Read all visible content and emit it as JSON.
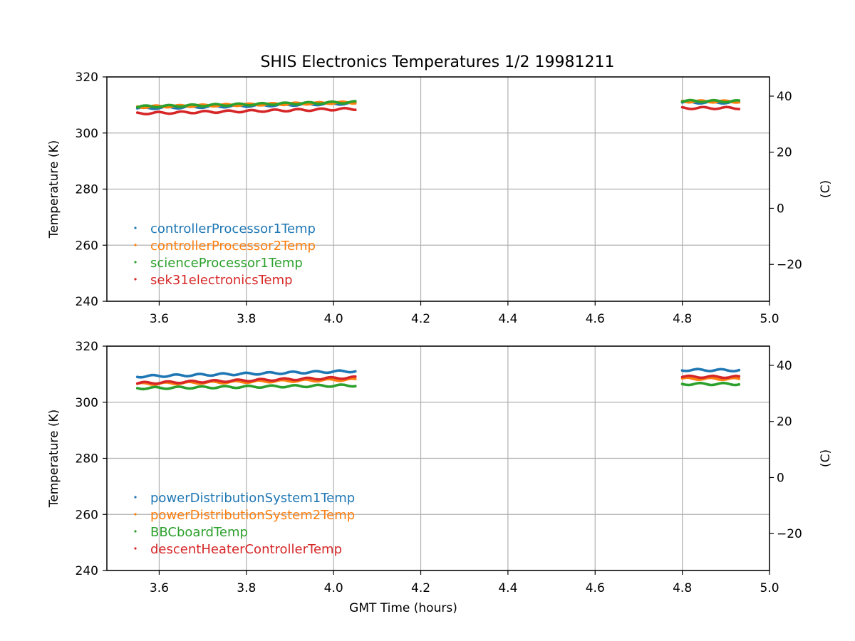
{
  "title": "SHIS Electronics Temperatures 1/2 19981211",
  "colors": {
    "blue": "#1f77b4",
    "orange": "#ff7f0e",
    "green": "#2ca02c",
    "red": "#d62728",
    "grid": "#b0b0b0"
  },
  "chart_data": [
    {
      "type": "scatter",
      "xlabel": "",
      "ylabel": "Temperature (K)",
      "y2label": "(C)",
      "xlim": [
        3.48,
        5.0
      ],
      "ylim": [
        240,
        320
      ],
      "xticks": [
        "3.6",
        "3.8",
        "4.0",
        "4.2",
        "4.4",
        "4.6",
        "4.8",
        "5.0"
      ],
      "yticks": [
        "240",
        "260",
        "280",
        "300",
        "320"
      ],
      "y2ticks": [
        "−20",
        "0",
        "20",
        "40"
      ],
      "grid": true,
      "legend_position": "lower-left",
      "series": [
        {
          "name": "controllerProcessor1Temp",
          "color": "#1f77b4",
          "segments": [
            {
              "x": [
                3.55,
                4.05
              ],
              "y": [
                308.8,
                310.6
              ]
            },
            {
              "x": [
                4.8,
                4.93
              ],
              "y": [
                310.9,
                310.9
              ]
            }
          ]
        },
        {
          "name": "controllerProcessor2Temp",
          "color": "#ff7f0e",
          "segments": [
            {
              "x": [
                3.55,
                4.05
              ],
              "y": [
                309.3,
                310.9
              ]
            },
            {
              "x": [
                4.8,
                4.93
              ],
              "y": [
                311.3,
                311.2
              ]
            }
          ]
        },
        {
          "name": "scienceProcessor1Temp",
          "color": "#2ca02c",
          "segments": [
            {
              "x": [
                3.55,
                4.05
              ],
              "y": [
                309.4,
                311.0
              ]
            },
            {
              "x": [
                4.8,
                4.93
              ],
              "y": [
                311.4,
                311.3
              ]
            }
          ]
        },
        {
          "name": "sek31electronicsTemp",
          "color": "#d62728",
          "segments": [
            {
              "x": [
                3.55,
                4.05
              ],
              "y": [
                307.0,
                308.6
              ]
            },
            {
              "x": [
                4.8,
                4.93
              ],
              "y": [
                308.9,
                308.9
              ]
            }
          ]
        }
      ]
    },
    {
      "type": "scatter",
      "xlabel": "GMT Time (hours)",
      "ylabel": "Temperature (K)",
      "y2label": "(C)",
      "xlim": [
        3.48,
        5.0
      ],
      "ylim": [
        240,
        320
      ],
      "xticks": [
        "3.6",
        "3.8",
        "4.0",
        "4.2",
        "4.4",
        "4.6",
        "4.8",
        "5.0"
      ],
      "yticks": [
        "240",
        "260",
        "280",
        "300",
        "320"
      ],
      "y2ticks": [
        "−20",
        "0",
        "20",
        "40"
      ],
      "grid": true,
      "legend_position": "lower-left",
      "series": [
        {
          "name": "powerDistributionSystem1Temp",
          "color": "#1f77b4",
          "segments": [
            {
              "x": [
                3.55,
                4.05
              ],
              "y": [
                309.2,
                311.1
              ]
            },
            {
              "x": [
                4.8,
                4.93
              ],
              "y": [
                311.5,
                311.4
              ]
            }
          ]
        },
        {
          "name": "powerDistributionSystem2Temp",
          "color": "#ff7f0e",
          "segments": [
            {
              "x": [
                3.55,
                4.05
              ],
              "y": [
                306.5,
                308.1
              ]
            },
            {
              "x": [
                4.8,
                4.93
              ],
              "y": [
                308.4,
                308.3
              ]
            }
          ]
        },
        {
          "name": "BBCboardTemp",
          "color": "#2ca02c",
          "segments": [
            {
              "x": [
                3.55,
                4.05
              ],
              "y": [
                305.0,
                306.0
              ]
            },
            {
              "x": [
                4.8,
                4.93
              ],
              "y": [
                306.5,
                306.5
              ]
            }
          ]
        },
        {
          "name": "descentHeaterControllerTemp",
          "color": "#d62728",
          "segments": [
            {
              "x": [
                3.55,
                4.05
              ],
              "y": [
                306.8,
                308.8
              ]
            },
            {
              "x": [
                4.8,
                4.93
              ],
              "y": [
                309.1,
                309.0
              ]
            }
          ]
        }
      ]
    }
  ]
}
